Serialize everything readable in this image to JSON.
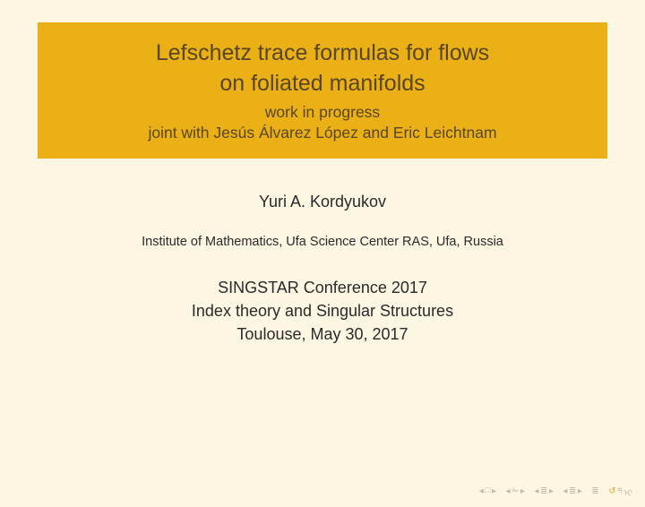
{
  "colors": {
    "background": "#fdf6e3",
    "title_block_bg": "#eab015",
    "title_text": "#584626",
    "body_text": "#2a2a2a",
    "nav_dim": "#c4bba4",
    "nav_accent": "#d4a82a"
  },
  "title": {
    "line1": "Lefschetz trace formulas for flows",
    "line2": "on foliated manifolds",
    "sub1": "work in progress",
    "sub2": "joint with Jesús Álvarez López and Eric Leichtnam"
  },
  "author": "Yuri A. Kordyukov",
  "institute": "Institute of Mathematics, Ufa Science Center RAS, Ufa, Russia",
  "conference": {
    "line1": "SINGSTAR Conference 2017",
    "line2": "Index theory and Singular Structures",
    "line3": "Toulouse, May 30, 2017"
  },
  "nav": {
    "first_left": "◂",
    "first_box": "□",
    "first_right": "▸",
    "frame_left": "◂",
    "frame_icon": "✁",
    "frame_right": "▸",
    "sub_left": "◂",
    "sub_icon": "≣",
    "sub_right": "▸",
    "sec_left": "◂",
    "sec_icon": "≣",
    "sec_right": "▸",
    "mode": "≣",
    "back1": "↺",
    "back2": "੧",
    "back3": "ᢈ"
  }
}
